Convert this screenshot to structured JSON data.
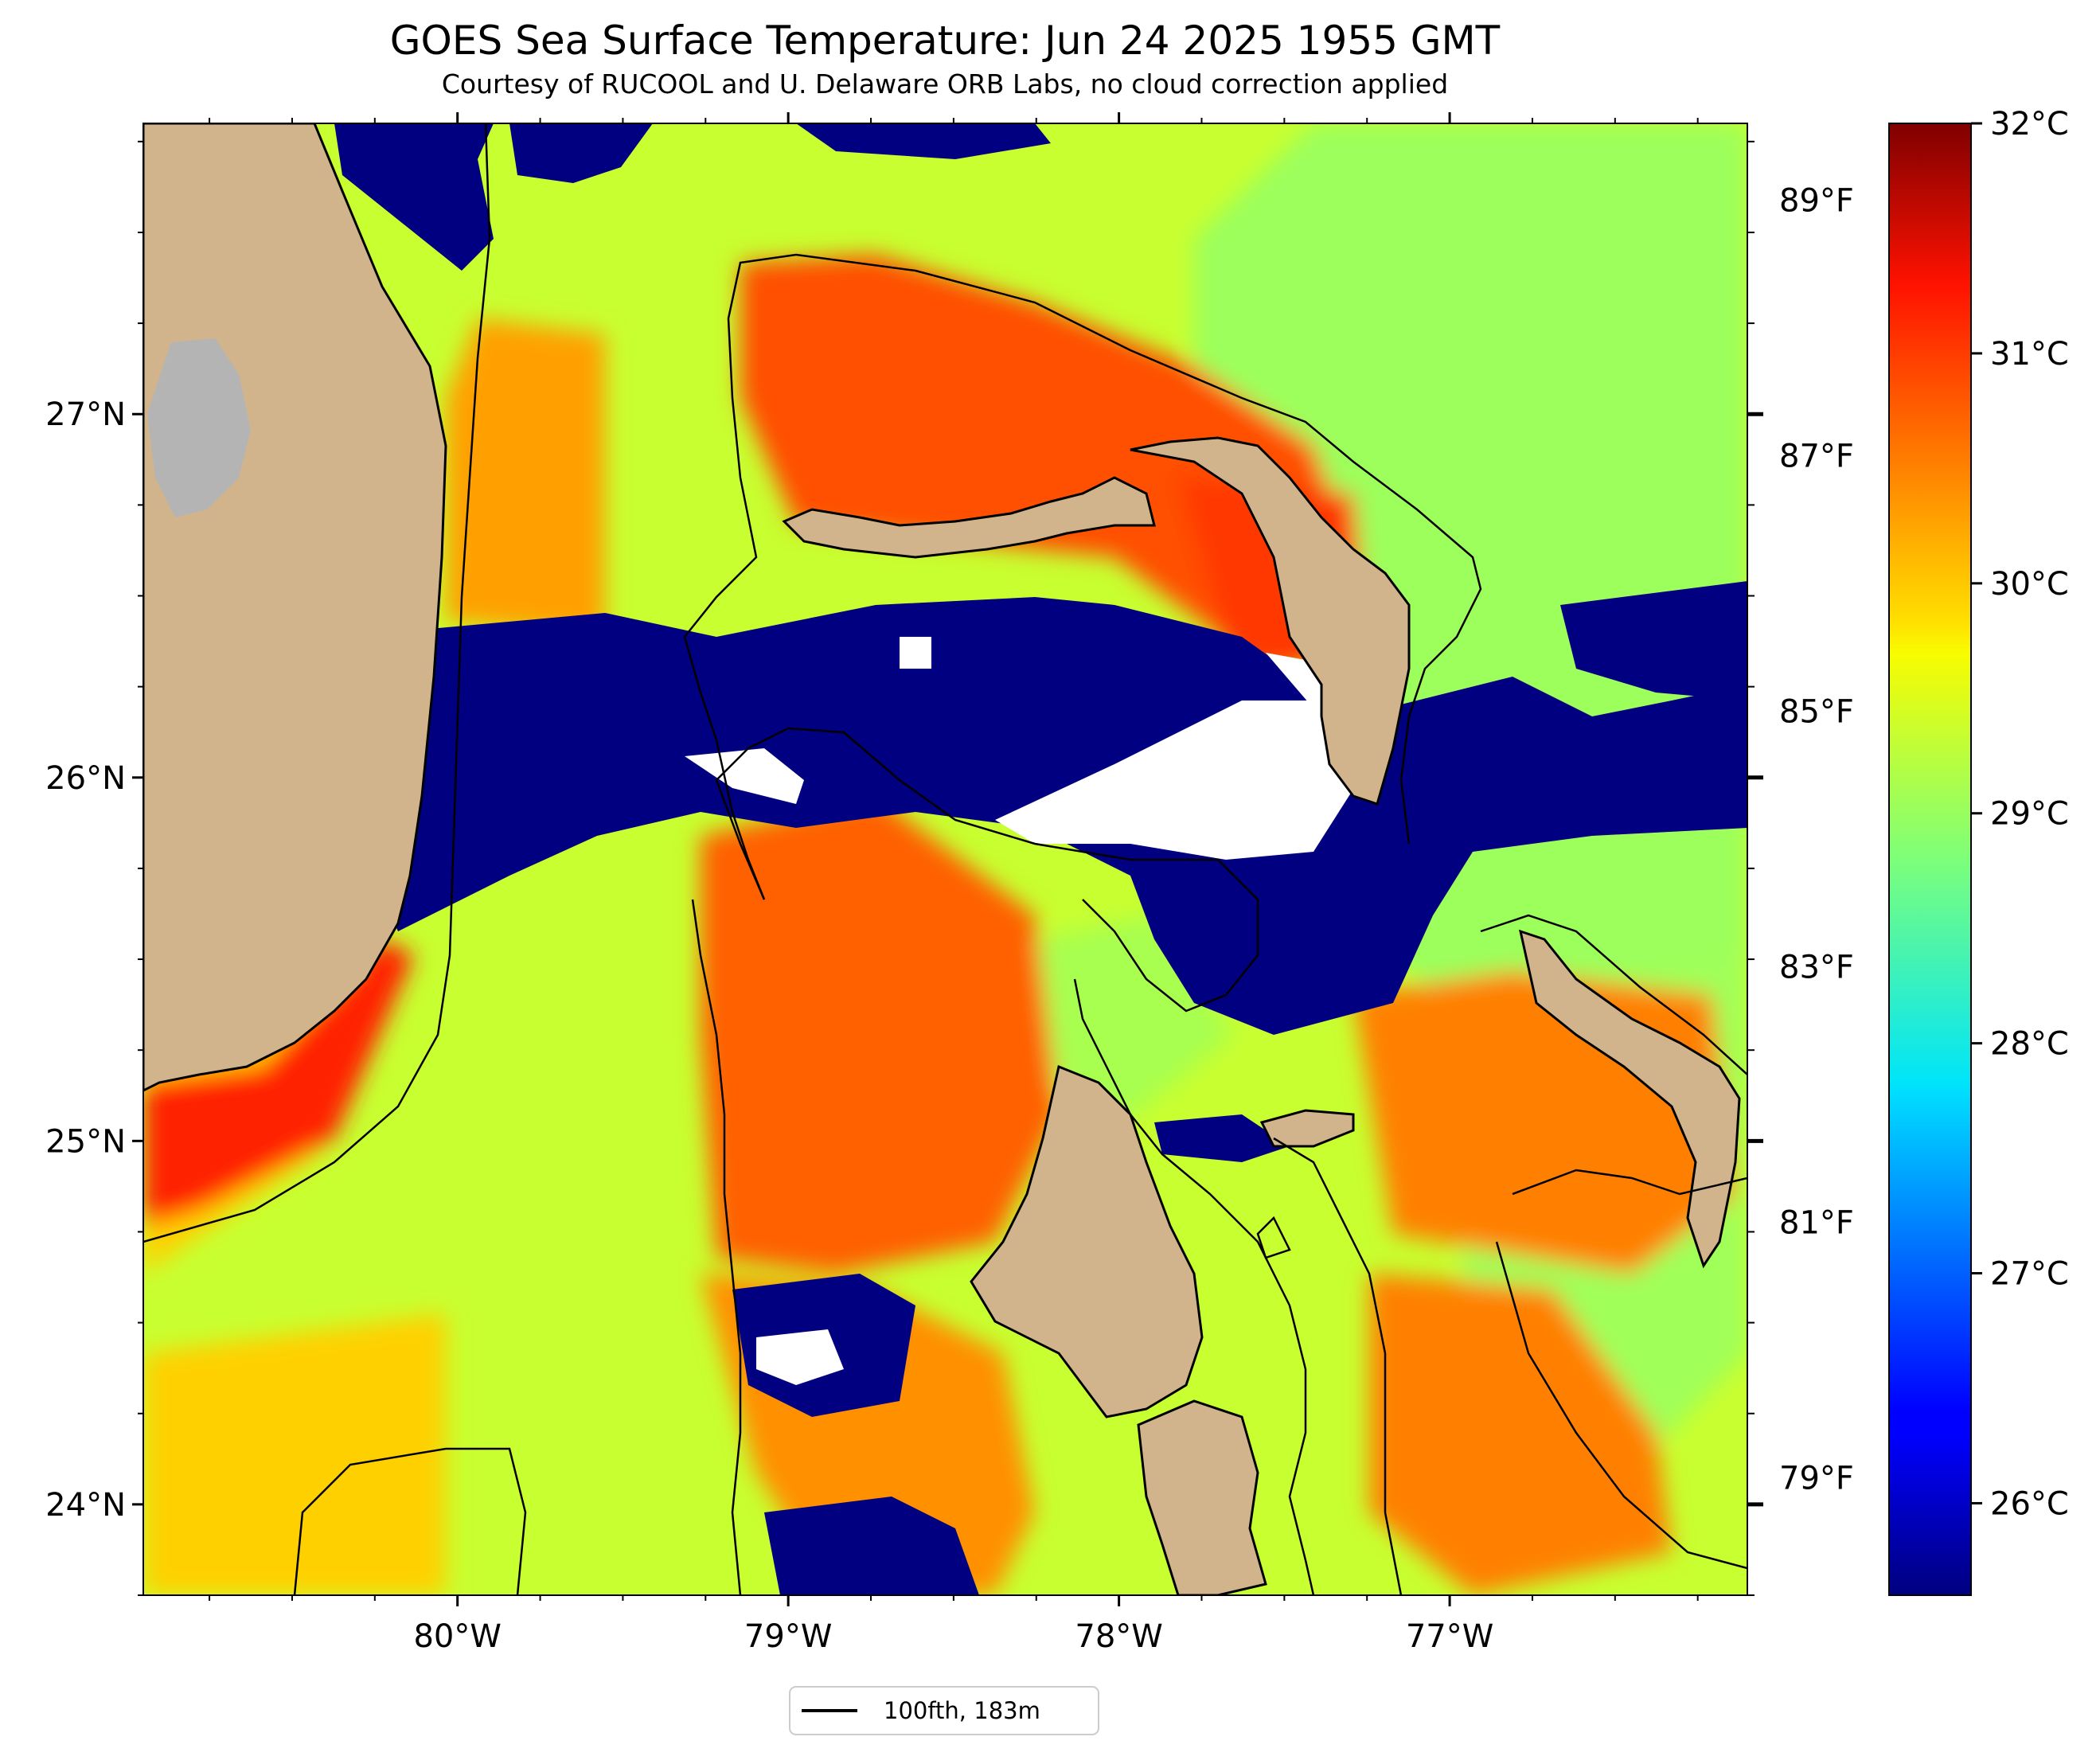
{
  "title": "GOES Sea Surface Temperature: Jun 24 2025 1955 GMT",
  "subtitle": "Courtesy of RUCOOL and U. Delaware ORB Labs, no cloud correction applied",
  "legend": {
    "label": "100fth, 183m"
  },
  "map": {
    "lon_range": [
      -80.95,
      -76.1
    ],
    "lat_range": [
      23.75,
      27.8
    ],
    "lon_ticks": [
      {
        "value": -80,
        "label": "80°W"
      },
      {
        "value": -79,
        "label": "79°W"
      },
      {
        "value": -78,
        "label": "78°W"
      },
      {
        "value": -77,
        "label": "77°W"
      }
    ],
    "lat_ticks": [
      {
        "value": 27,
        "label": "27°N"
      },
      {
        "value": 26,
        "label": "26°N"
      },
      {
        "value": 25,
        "label": "25°N"
      },
      {
        "value": 24,
        "label": "24°N"
      }
    ],
    "fahrenheit_ticks": [
      {
        "value": 89,
        "label": "89°F"
      },
      {
        "value": 87,
        "label": "87°F"
      },
      {
        "value": 85,
        "label": "85°F"
      },
      {
        "value": 83,
        "label": "83°F"
      },
      {
        "value": 81,
        "label": "81°F"
      },
      {
        "value": 79,
        "label": "79°F"
      }
    ],
    "land_color": "#d2b48c",
    "lake_color": "#b4b4b4",
    "cloud_color": "#000080",
    "nodata_color": "#ffffff"
  },
  "colorbar": {
    "min_c": 25.6,
    "max_c": 32.0,
    "colormap": "jet",
    "ticks": [
      {
        "value": 32,
        "label": "32°C"
      },
      {
        "value": 31,
        "label": "31°C"
      },
      {
        "value": 30,
        "label": "30°C"
      },
      {
        "value": 29,
        "label": "29°C"
      },
      {
        "value": 28,
        "label": "28°C"
      },
      {
        "value": 27,
        "label": "27°C"
      },
      {
        "value": 26,
        "label": "26°C"
      }
    ]
  }
}
